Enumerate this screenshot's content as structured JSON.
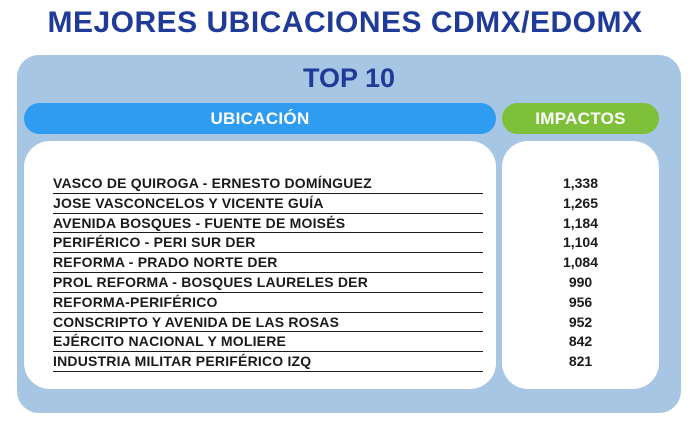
{
  "title": "MEJORES UBICACIONES CDMX/EDOMX",
  "subtitle": "TOP 10",
  "columns": {
    "location": "UBICACIÓN",
    "impacts": "IMPACTOS"
  },
  "colors": {
    "title": "#1f3a97",
    "panel": "#a7c6e3",
    "location_header": "#2e9cf0",
    "impacts_header": "#7fc03a"
  },
  "rows": [
    {
      "location": "VASCO DE QUIROGA - ERNESTO DOMÍNGUEZ",
      "impacts": "1,338"
    },
    {
      "location": "JOSE VASCONCELOS Y VICENTE GUÍA",
      "impacts": "1,265"
    },
    {
      "location": "AVENIDA BOSQUES - FUENTE DE MOISÉS",
      "impacts": "1,184"
    },
    {
      "location": "PERIFÉRICO - PERI SUR DER",
      "impacts": "1,104"
    },
    {
      "location": "REFORMA - PRADO NORTE DER",
      "impacts": "1,084"
    },
    {
      "location": "PROL REFORMA - BOSQUES LAURELES DER",
      "impacts": "990"
    },
    {
      "location": "REFORMA-PERIFÉRICO",
      "impacts": "956"
    },
    {
      "location": "CONSCRIPTO Y AVENIDA DE LAS ROSAS",
      "impacts": "952"
    },
    {
      "location": "EJÉRCITO NACIONAL Y MOLIERE",
      "impacts": "842"
    },
    {
      "location": "INDUSTRIA MILITAR PERIFÉRICO IZQ",
      "impacts": "821"
    }
  ]
}
